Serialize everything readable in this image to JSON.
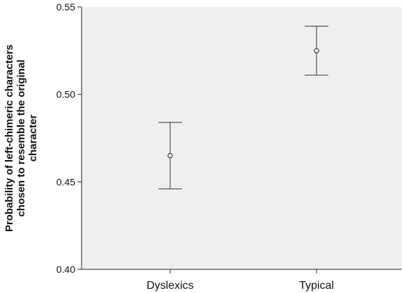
{
  "chart_data": {
    "type": "errorbar",
    "title": "",
    "xlabel": "",
    "ylabel_lines": [
      "Probability of left-chimeric characters",
      "chosen to resemble the original",
      "character"
    ],
    "categories": [
      "Dyslexics",
      "Typical"
    ],
    "means": [
      0.465,
      0.525
    ],
    "lower": [
      0.446,
      0.511
    ],
    "upper": [
      0.484,
      0.539
    ],
    "ylim": [
      0.4,
      0.55
    ],
    "yticks": [
      0.4,
      0.45,
      0.5,
      0.55
    ],
    "ytick_labels": [
      "0.40",
      "0.45",
      "0.50",
      "0.55"
    ],
    "grid": false,
    "plot_background": "#efefef",
    "mark_color": "#333333"
  }
}
